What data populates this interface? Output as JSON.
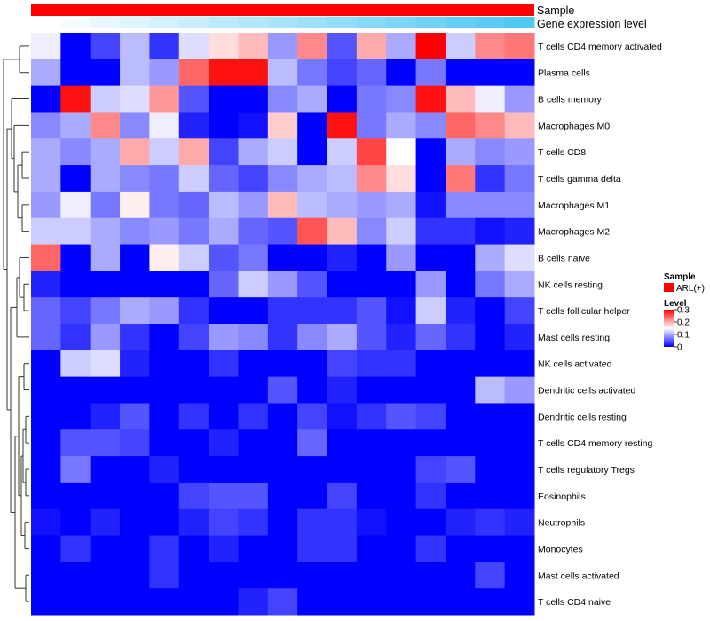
{
  "colors": {
    "low": "#0000ff",
    "mid": "#ffffff",
    "high": "#ff0000",
    "sample_annotation": "#ff0000",
    "expression_low": "#ffffff",
    "expression_high": "#4fc8f5",
    "dendrogram": "#333333"
  },
  "chart_data": {
    "type": "heatmap",
    "annotations": [
      {
        "label": "Sample"
      },
      {
        "label": "Gene expression level"
      }
    ],
    "rows": [
      "T cells CD4 memory activated",
      "Plasma cells",
      "B cells memory",
      "Macrophages M0",
      "T cells CD8",
      "T cells gamma delta",
      "Macrophages M1",
      "Macrophages M2",
      "B cells naive",
      "NK cells resting",
      "T cells follicular helper",
      "Mast cells resting",
      "NK cells activated",
      "Dendritic cells activated",
      "Dendritic cells resting",
      "T cells CD4 memory resting",
      "T cells regulatory  Tregs",
      "Eosinophils",
      "Neutrophils",
      "Monocytes",
      "Mast cells activated",
      "T cells CD4 naive"
    ],
    "values": [
      [
        0.14,
        0.0,
        0.04,
        0.11,
        0.03,
        0.13,
        0.17,
        0.19,
        0.09,
        0.22,
        0.05,
        0.2,
        0.1,
        0.3,
        0.12,
        0.22,
        0.23
      ],
      [
        0.1,
        0.0,
        0.0,
        0.11,
        0.09,
        0.24,
        0.29,
        0.29,
        0.11,
        0.07,
        0.04,
        0.06,
        0.0,
        0.07,
        0.0,
        0.0,
        0.0
      ],
      [
        0.0,
        0.29,
        0.12,
        0.13,
        0.21,
        0.05,
        0.0,
        0.0,
        0.08,
        0.1,
        0.0,
        0.07,
        0.08,
        0.29,
        0.19,
        0.14,
        0.09
      ],
      [
        0.08,
        0.1,
        0.22,
        0.08,
        0.14,
        0.02,
        0.0,
        0.01,
        0.18,
        0.0,
        0.29,
        0.07,
        0.1,
        0.08,
        0.24,
        0.22,
        0.19
      ],
      [
        0.1,
        0.08,
        0.1,
        0.2,
        0.12,
        0.2,
        0.04,
        0.1,
        0.12,
        0.0,
        0.12,
        0.26,
        0.15,
        0.0,
        0.1,
        0.08,
        0.09
      ],
      [
        0.1,
        0.0,
        0.1,
        0.08,
        0.07,
        0.12,
        0.06,
        0.04,
        0.08,
        0.1,
        0.11,
        0.22,
        0.17,
        0.0,
        0.23,
        0.03,
        0.07
      ],
      [
        0.09,
        0.14,
        0.07,
        0.16,
        0.07,
        0.06,
        0.11,
        0.09,
        0.19,
        0.11,
        0.1,
        0.09,
        0.1,
        0.01,
        0.08,
        0.08,
        0.08
      ],
      [
        0.12,
        0.12,
        0.1,
        0.08,
        0.09,
        0.07,
        0.1,
        0.06,
        0.05,
        0.25,
        0.19,
        0.08,
        0.12,
        0.03,
        0.03,
        0.01,
        0.02
      ],
      [
        0.24,
        0.0,
        0.1,
        0.0,
        0.16,
        0.12,
        0.05,
        0.07,
        0.0,
        0.0,
        0.02,
        0.0,
        0.09,
        0.0,
        0.0,
        0.1,
        0.13
      ],
      [
        0.02,
        0.0,
        0.0,
        0.0,
        0.0,
        0.0,
        0.06,
        0.12,
        0.09,
        0.05,
        0.0,
        0.0,
        0.0,
        0.09,
        0.0,
        0.07,
        0.1
      ],
      [
        0.06,
        0.04,
        0.07,
        0.1,
        0.09,
        0.03,
        0.0,
        0.0,
        0.03,
        0.03,
        0.03,
        0.05,
        0.01,
        0.12,
        0.02,
        0.0,
        0.04
      ],
      [
        0.06,
        0.03,
        0.09,
        0.03,
        0.0,
        0.04,
        0.09,
        0.08,
        0.03,
        0.08,
        0.1,
        0.05,
        0.02,
        0.06,
        0.03,
        0.0,
        0.02
      ],
      [
        0.0,
        0.12,
        0.13,
        0.02,
        0.0,
        0.0,
        0.03,
        0.0,
        0.0,
        0.0,
        0.04,
        0.03,
        0.03,
        0.0,
        0.0,
        0.0,
        0.0
      ],
      [
        0.0,
        0.0,
        0.0,
        0.0,
        0.0,
        0.0,
        0.0,
        0.0,
        0.05,
        0.0,
        0.02,
        0.0,
        0.0,
        0.0,
        0.0,
        0.11,
        0.09
      ],
      [
        0.0,
        0.0,
        0.02,
        0.05,
        0.0,
        0.03,
        0.0,
        0.03,
        0.0,
        0.04,
        0.01,
        0.03,
        0.05,
        0.04,
        0.0,
        0.0,
        0.0
      ],
      [
        0.0,
        0.05,
        0.05,
        0.04,
        0.0,
        0.0,
        0.02,
        0.0,
        0.0,
        0.06,
        0.0,
        0.0,
        0.0,
        0.0,
        0.0,
        0.0,
        0.0
      ],
      [
        0.0,
        0.07,
        0.0,
        0.0,
        0.02,
        0.0,
        0.0,
        0.0,
        0.0,
        0.0,
        0.0,
        0.0,
        0.0,
        0.04,
        0.05,
        0.0,
        0.0
      ],
      [
        0.0,
        0.0,
        0.0,
        0.0,
        0.0,
        0.04,
        0.05,
        0.05,
        0.0,
        0.0,
        0.04,
        0.0,
        0.0,
        0.03,
        0.0,
        0.0,
        0.0
      ],
      [
        0.01,
        0.0,
        0.02,
        0.0,
        0.0,
        0.02,
        0.04,
        0.03,
        0.0,
        0.03,
        0.03,
        0.01,
        0.0,
        0.0,
        0.02,
        0.03,
        0.02
      ],
      [
        0.0,
        0.03,
        0.0,
        0.0,
        0.03,
        0.0,
        0.02,
        0.0,
        0.0,
        0.03,
        0.03,
        0.0,
        0.0,
        0.03,
        0.0,
        0.0,
        0.0
      ],
      [
        0.0,
        0.0,
        0.0,
        0.0,
        0.03,
        0.0,
        0.0,
        0.0,
        0.0,
        0.0,
        0.0,
        0.0,
        0.0,
        0.0,
        0.0,
        0.04,
        0.0
      ],
      [
        0.0,
        0.0,
        0.0,
        0.0,
        0.0,
        0.0,
        0.0,
        0.02,
        0.04,
        0.0,
        0.0,
        0.0,
        0.0,
        0.0,
        0.0,
        0.0,
        0.0
      ]
    ],
    "sample_groups": [
      "ARL(+)"
    ],
    "expression_levels": [
      0.0,
      0.06,
      0.12,
      0.19,
      0.25,
      0.31,
      0.38,
      0.44,
      0.5,
      0.56,
      0.62,
      0.69,
      0.75,
      0.81,
      0.88,
      0.94,
      1.0
    ],
    "scale_range": [
      0,
      0.3
    ],
    "legend": {
      "sample_title": "Sample",
      "sample_entry": "ARL(+)",
      "level_title": "Level",
      "ticks": [
        "0.3",
        "0.2",
        "0.1",
        "0"
      ],
      "position": "right"
    },
    "dendrogram_side": "left",
    "grid": false
  }
}
